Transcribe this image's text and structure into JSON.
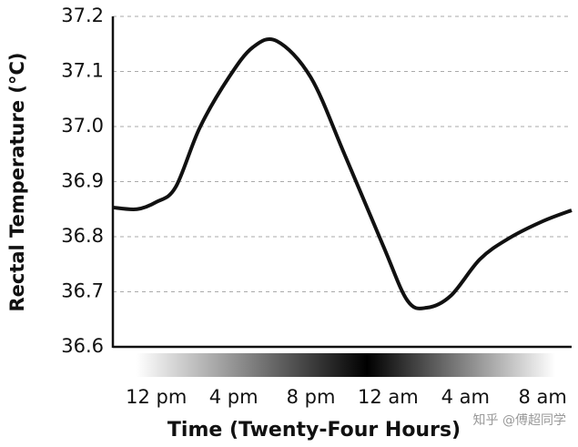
{
  "chart_data": {
    "type": "line",
    "y_label": "Rectal Temperature (°C)",
    "x_label": "Time (Twenty-Four Hours)",
    "watermark": "知乎 @傅超同学",
    "x": [
      9.75,
      11,
      12,
      13,
      14.25,
      15.75,
      17,
      18.25,
      20,
      21.75,
      23.75,
      25,
      26,
      27.25,
      28.75,
      30.25,
      32,
      33.5
    ],
    "values": [
      36.853,
      36.85,
      36.863,
      36.89,
      36.998,
      37.089,
      37.144,
      37.155,
      37.089,
      36.949,
      36.783,
      36.684,
      36.671,
      36.693,
      36.759,
      36.797,
      36.828,
      36.848
    ],
    "color": "#111111",
    "xlim": [
      9.75,
      33.5
    ],
    "xticks": [
      {
        "value": 12,
        "label": "12 pm"
      },
      {
        "value": 16,
        "label": "4 pm"
      },
      {
        "value": 20,
        "label": "8 pm"
      },
      {
        "value": 24,
        "label": "12 am"
      },
      {
        "value": 28,
        "label": "4 am"
      },
      {
        "value": 32,
        "label": "8 am"
      }
    ],
    "ylim": [
      36.6,
      37.2
    ],
    "yticks": [
      36.6,
      36.7,
      36.8,
      36.9,
      {
        "value": 37,
        "label": "37.0"
      },
      37.1,
      37.2
    ],
    "grid": true
  }
}
